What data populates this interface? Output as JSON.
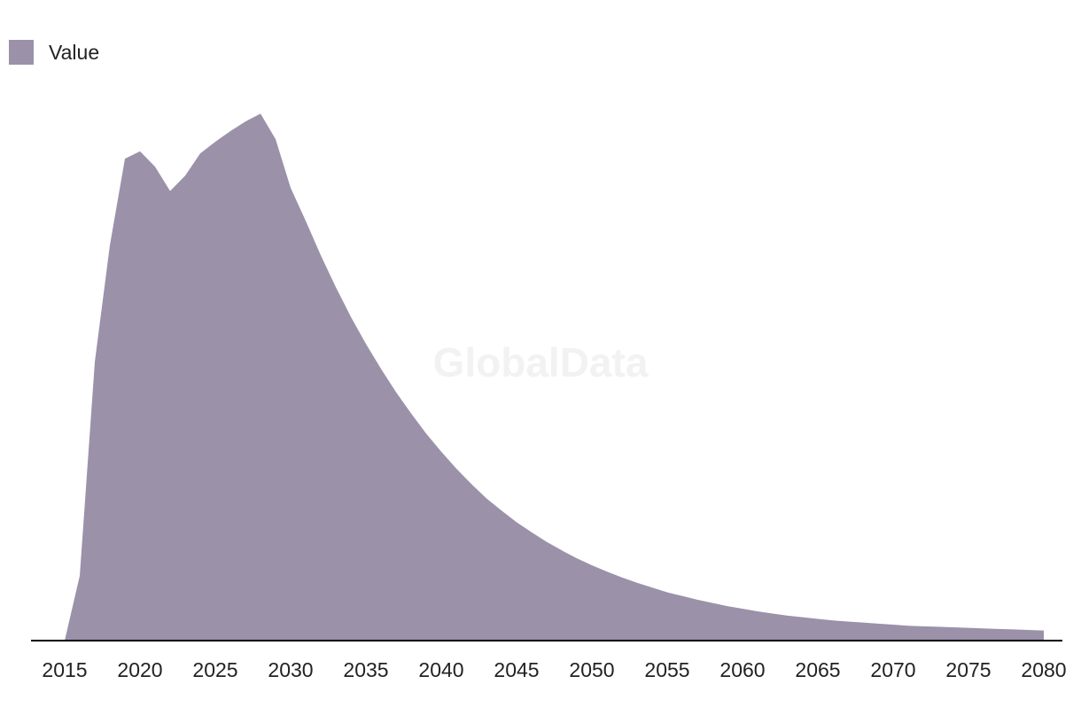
{
  "legend": {
    "label": "Value",
    "color": "#9b91a9"
  },
  "watermark": "GlobalData",
  "chart_data": {
    "type": "area",
    "title": "",
    "xlabel": "",
    "ylabel": "",
    "color": "#9b91a9",
    "axis_color": "#000000",
    "grid": false,
    "legend_position": "top-left",
    "xlim": [
      2015,
      2080
    ],
    "ylim": [
      0,
      100
    ],
    "x_ticks": [
      2015,
      2020,
      2025,
      2030,
      2035,
      2040,
      2045,
      2050,
      2055,
      2060,
      2065,
      2070,
      2075,
      2080
    ],
    "series": [
      {
        "name": "Value",
        "x": [
          2015,
          2016,
          2017,
          2018,
          2019,
          2020,
          2021,
          2022,
          2023,
          2024,
          2025,
          2026,
          2027,
          2028,
          2029,
          2030,
          2031,
          2032,
          2033,
          2034,
          2035,
          2036,
          2037,
          2038,
          2039,
          2040,
          2041,
          2042,
          2043,
          2044,
          2045,
          2046,
          2047,
          2048,
          2049,
          2050,
          2051,
          2052,
          2053,
          2054,
          2055,
          2056,
          2057,
          2058,
          2059,
          2060,
          2061,
          2062,
          2063,
          2064,
          2065,
          2066,
          2067,
          2068,
          2069,
          2070,
          2071,
          2072,
          2073,
          2074,
          2075,
          2076,
          2077,
          2078,
          2079,
          2080
        ],
        "values": [
          0,
          12.2,
          52.5,
          74.5,
          90.8,
          92.2,
          89.3,
          84.7,
          87.6,
          91.8,
          94.0,
          96.0,
          97.8,
          99.3,
          94.5,
          85.3,
          79.1,
          72.6,
          66.6,
          61.0,
          55.9,
          51.2,
          46.8,
          42.8,
          39.0,
          35.6,
          32.4,
          29.5,
          26.8,
          24.5,
          22.3,
          20.4,
          18.6,
          17.0,
          15.5,
          14.2,
          13.0,
          11.9,
          10.9,
          10.0,
          9.1,
          8.4,
          7.7,
          7.1,
          6.5,
          6.0,
          5.5,
          5.1,
          4.7,
          4.4,
          4.1,
          3.8,
          3.6,
          3.4,
          3.2,
          3.0,
          2.8,
          2.7,
          2.6,
          2.5,
          2.4,
          2.3,
          2.2,
          2.1,
          2.0,
          1.9
        ]
      }
    ]
  }
}
